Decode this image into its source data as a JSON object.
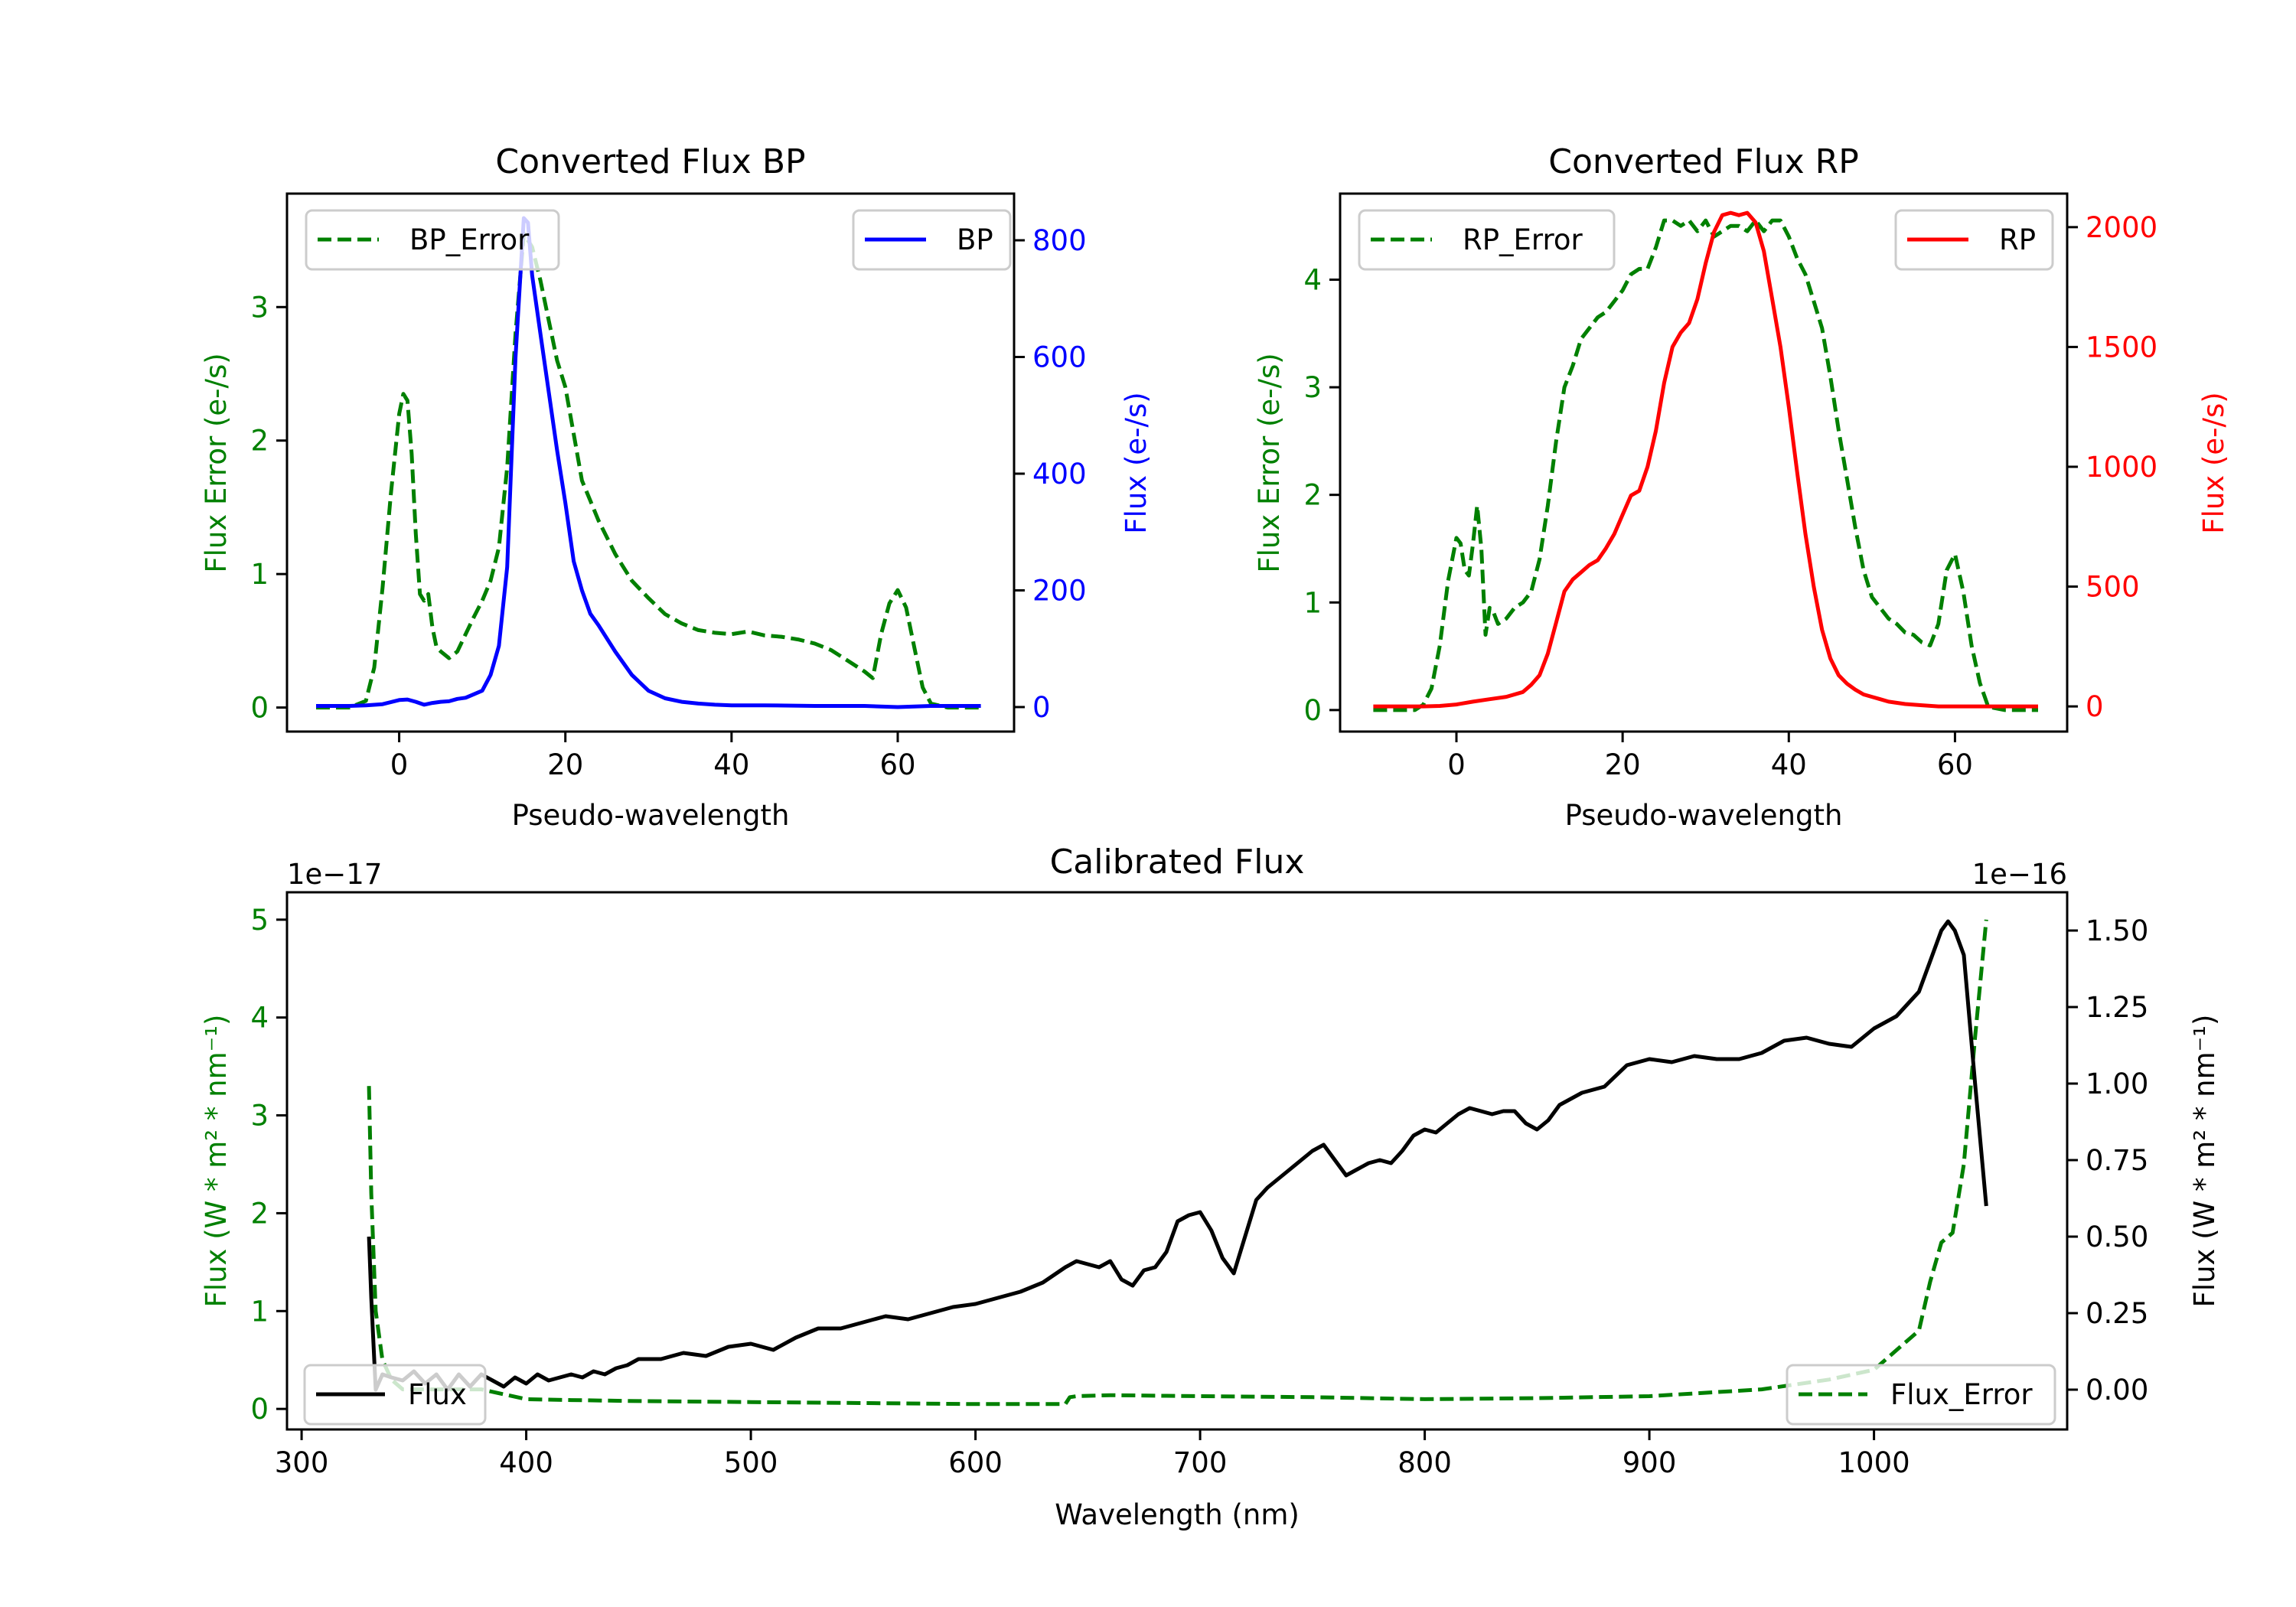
{
  "figure": {
    "background": "#ffffff"
  },
  "colors": {
    "error": "#008000",
    "bp": "#0000ff",
    "rp": "#ff0000",
    "flux": "#000000",
    "axis": "#000000"
  },
  "chart_data": [
    {
      "id": "bp",
      "type": "line",
      "title": "Converted Flux BP",
      "xlabel": "Pseudo-wavelength",
      "ylabel_left": "Flux Error (e-/s)",
      "ylabel_right": "Flux (e-/s)",
      "xlim": [
        -13.5,
        74
      ],
      "ylim_left": [
        -0.18,
        3.85
      ],
      "ylim_right": [
        -42,
        880
      ],
      "xticks": [
        0,
        20,
        40,
        60
      ],
      "xtick_labels": [
        "0",
        "20",
        "40",
        "60"
      ],
      "yticks_left": [
        0,
        1,
        2,
        3
      ],
      "ytick_labels_left": [
        "0",
        "1",
        "2",
        "3"
      ],
      "yticks_right": [
        0,
        200,
        400,
        600,
        800
      ],
      "ytick_labels_right": [
        "0",
        "200",
        "400",
        "600",
        "800"
      ],
      "grid": false,
      "legends": [
        {
          "label": "BP_Error",
          "placement": "upper-left",
          "series": "error"
        },
        {
          "label": "BP",
          "placement": "upper-right",
          "series": "flux"
        }
      ],
      "series": [
        {
          "name": "BP_Error",
          "axis": "left",
          "style": "dashed",
          "color_key": "error",
          "x": [
            -10,
            -6,
            -4,
            -3,
            -2,
            -1,
            0,
            0.5,
            1,
            1.5,
            2,
            2.5,
            3,
            3.5,
            4,
            4.5,
            5,
            6,
            7,
            8,
            9,
            10,
            11,
            12,
            13,
            14,
            15,
            16,
            17,
            18,
            19,
            20,
            21,
            22,
            23,
            24,
            26,
            28,
            30,
            32,
            34,
            36,
            38,
            40,
            42,
            44,
            46,
            48,
            50,
            52,
            54,
            56,
            57,
            58,
            59,
            60,
            61,
            62,
            63,
            64,
            66,
            70
          ],
          "y": [
            0,
            0,
            0.05,
            0.3,
            0.9,
            1.6,
            2.2,
            2.35,
            2.3,
            1.9,
            1.3,
            0.85,
            0.8,
            0.85,
            0.6,
            0.45,
            0.42,
            0.37,
            0.42,
            0.55,
            0.68,
            0.8,
            0.95,
            1.2,
            1.8,
            2.8,
            3.55,
            3.45,
            3.2,
            2.9,
            2.6,
            2.4,
            2.05,
            1.7,
            1.55,
            1.4,
            1.15,
            0.95,
            0.82,
            0.7,
            0.63,
            0.58,
            0.56,
            0.55,
            0.57,
            0.54,
            0.53,
            0.51,
            0.48,
            0.43,
            0.35,
            0.27,
            0.22,
            0.55,
            0.78,
            0.88,
            0.75,
            0.45,
            0.15,
            0.03,
            0,
            0
          ]
        },
        {
          "name": "BP",
          "axis": "right",
          "style": "solid",
          "color_key": "bp",
          "x": [
            -10,
            -6,
            -4,
            -2,
            0,
            1,
            2,
            3,
            4,
            5,
            6,
            7,
            8,
            9,
            10,
            11,
            12,
            13,
            14,
            15,
            15.5,
            16,
            17,
            18,
            19,
            20,
            21,
            22,
            23,
            24,
            26,
            28,
            30,
            32,
            34,
            36,
            38,
            40,
            44,
            50,
            56,
            60,
            64,
            70
          ],
          "y": [
            2,
            2,
            3,
            5,
            12,
            13,
            9,
            4,
            7,
            9,
            10,
            14,
            16,
            22,
            28,
            55,
            105,
            240,
            600,
            838,
            830,
            740,
            640,
            540,
            440,
            350,
            250,
            200,
            160,
            140,
            95,
            55,
            28,
            15,
            9,
            6,
            4,
            3,
            3,
            2,
            2,
            0,
            2,
            2
          ]
        }
      ]
    },
    {
      "id": "rp",
      "type": "line",
      "title": "Converted Flux RP",
      "xlabel": "Pseudo-wavelength",
      "ylabel_left": "Flux Error (e-/s)",
      "ylabel_right": "Flux (e-/s)",
      "xlim": [
        -14,
        73.5
      ],
      "ylim_left": [
        -0.2,
        4.8
      ],
      "ylim_right": [
        -105,
        2140
      ],
      "xticks": [
        0,
        20,
        40,
        60
      ],
      "xtick_labels": [
        "0",
        "20",
        "40",
        "60"
      ],
      "yticks_left": [
        0,
        1,
        2,
        3,
        4
      ],
      "ytick_labels_left": [
        "0",
        "1",
        "2",
        "3",
        "4"
      ],
      "yticks_right": [
        0,
        500,
        1000,
        1500,
        2000
      ],
      "ytick_labels_right": [
        "0",
        "500",
        "1000",
        "1500",
        "2000"
      ],
      "grid": false,
      "legends": [
        {
          "label": "RP_Error",
          "placement": "upper-left",
          "series": "error"
        },
        {
          "label": "RP",
          "placement": "upper-right",
          "series": "flux"
        }
      ],
      "series": [
        {
          "name": "RP_Error",
          "axis": "left",
          "style": "dashed",
          "color_key": "error",
          "x": [
            -10,
            -5,
            -4,
            -3,
            -2,
            -1,
            0,
            0.5,
            1,
            1.5,
            2,
            2.5,
            3,
            3.5,
            4,
            4.5,
            5,
            6,
            7,
            8,
            9,
            10,
            11,
            12,
            13,
            14,
            15,
            16,
            17,
            18,
            19,
            20,
            21,
            22,
            23,
            24,
            25,
            26,
            27,
            28,
            29,
            30,
            31,
            32,
            33,
            34,
            35,
            36,
            37,
            38,
            39,
            40,
            41,
            42,
            43,
            44,
            45,
            46,
            47,
            48,
            49,
            50,
            51,
            52,
            53,
            54,
            55,
            56,
            57,
            58,
            59,
            60,
            61,
            62,
            63,
            64,
            66,
            70
          ],
          "y": [
            0,
            0,
            0.05,
            0.2,
            0.6,
            1.2,
            1.6,
            1.55,
            1.3,
            1.25,
            1.55,
            1.9,
            1.5,
            0.7,
            0.95,
            0.9,
            0.8,
            0.85,
            0.95,
            1.0,
            1.1,
            1.4,
            1.9,
            2.5,
            3.0,
            3.2,
            3.45,
            3.55,
            3.65,
            3.7,
            3.8,
            3.9,
            4.05,
            4.1,
            4.1,
            4.3,
            4.55,
            4.55,
            4.5,
            4.55,
            4.45,
            4.55,
            4.4,
            4.45,
            4.5,
            4.5,
            4.45,
            4.55,
            4.45,
            4.55,
            4.55,
            4.4,
            4.2,
            4.05,
            3.8,
            3.55,
            3.1,
            2.6,
            2.15,
            1.7,
            1.3,
            1.05,
            0.95,
            0.85,
            0.8,
            0.72,
            0.7,
            0.63,
            0.6,
            0.8,
            1.3,
            1.45,
            1.1,
            0.6,
            0.25,
            0.03,
            0,
            0
          ]
        },
        {
          "name": "RP",
          "axis": "right",
          "style": "solid",
          "color_key": "rp",
          "x": [
            -10,
            -4,
            -2,
            0,
            2,
            4,
            6,
            8,
            9,
            10,
            11,
            12,
            13,
            14,
            15,
            16,
            17,
            18,
            19,
            20,
            21,
            22,
            23,
            24,
            25,
            26,
            27,
            28,
            29,
            30,
            31,
            32,
            33,
            34,
            35,
            36,
            37,
            38,
            39,
            40,
            41,
            42,
            43,
            44,
            45,
            46,
            47,
            48,
            49,
            50,
            51,
            52,
            54,
            56,
            58,
            60,
            62,
            64,
            70
          ],
          "y": [
            0,
            0,
            2,
            8,
            20,
            30,
            40,
            60,
            90,
            130,
            220,
            350,
            480,
            530,
            560,
            590,
            610,
            660,
            720,
            800,
            880,
            900,
            1000,
            1150,
            1350,
            1500,
            1560,
            1600,
            1700,
            1850,
            1980,
            2050,
            2060,
            2050,
            2060,
            2020,
            1900,
            1700,
            1500,
            1250,
            980,
            720,
            500,
            320,
            200,
            130,
            95,
            70,
            50,
            40,
            30,
            20,
            10,
            5,
            0,
            0,
            0,
            0,
            0
          ]
        }
      ]
    },
    {
      "id": "calibrated",
      "type": "line",
      "title": "Calibrated Flux",
      "xlabel": "Wavelength (nm)",
      "ylabel_left": "Flux (W * m$^2$ * nm$^{-1}$)",
      "ylabel_left_display": "Flux (W * m² * nm⁻¹)",
      "ylabel_right_display": "Flux (W * m² * nm⁻¹)",
      "offset_left": "1e−17",
      "offset_right": "1e−16",
      "xlim": [
        293.5,
        1086
      ],
      "ylim_left": [
        -0.21,
        5.28
      ],
      "ylim_right": [
        -0.13,
        1.625
      ],
      "xticks": [
        300,
        400,
        500,
        600,
        700,
        800,
        900,
        1000
      ],
      "xtick_labels": [
        "300",
        "400",
        "500",
        "600",
        "700",
        "800",
        "900",
        "1000"
      ],
      "yticks_left": [
        0,
        1,
        2,
        3,
        4,
        5
      ],
      "ytick_labels_left": [
        "0",
        "1",
        "2",
        "3",
        "4",
        "5"
      ],
      "yticks_right": [
        0,
        0.25,
        0.5,
        0.75,
        1.0,
        1.25,
        1.5
      ],
      "ytick_labels_right": [
        "0.00",
        "0.25",
        "0.50",
        "0.75",
        "1.00",
        "1.25",
        "1.50"
      ],
      "grid": false,
      "legends": [
        {
          "label": "Flux",
          "placement": "lower-left",
          "series": "flux"
        },
        {
          "label": "Flux_Error",
          "placement": "lower-right",
          "series": "error"
        }
      ],
      "series": [
        {
          "name": "Flux_Error",
          "axis": "left",
          "unit_scale": "1e-17",
          "style": "dashed",
          "color_key": "error",
          "x": [
            330,
            331,
            333,
            336,
            340,
            345,
            360,
            380,
            390,
            400,
            420,
            450,
            500,
            550,
            600,
            640,
            642,
            645,
            660,
            700,
            750,
            800,
            850,
            900,
            950,
            980,
            1000,
            1010,
            1015,
            1020,
            1025,
            1030,
            1035,
            1040,
            1045,
            1050
          ],
          "y": [
            3.3,
            2.2,
            1.0,
            0.5,
            0.3,
            0.2,
            0.2,
            0.2,
            0.15,
            0.1,
            0.09,
            0.08,
            0.07,
            0.06,
            0.05,
            0.05,
            0.12,
            0.13,
            0.14,
            0.13,
            0.12,
            0.1,
            0.11,
            0.13,
            0.2,
            0.3,
            0.4,
            0.6,
            0.7,
            0.8,
            1.3,
            1.7,
            1.8,
            2.5,
            3.8,
            5.0
          ]
        },
        {
          "name": "Flux",
          "axis": "right",
          "unit_scale": "1e-16",
          "style": "solid",
          "color_key": "flux",
          "x": [
            330,
            331,
            333,
            336,
            340,
            345,
            350,
            355,
            360,
            365,
            370,
            375,
            380,
            385,
            390,
            395,
            400,
            405,
            410,
            415,
            420,
            425,
            430,
            435,
            440,
            445,
            450,
            460,
            470,
            480,
            490,
            500,
            510,
            520,
            530,
            540,
            550,
            560,
            570,
            580,
            590,
            600,
            610,
            620,
            630,
            640,
            645,
            650,
            655,
            660,
            665,
            670,
            675,
            680,
            685,
            690,
            695,
            700,
            705,
            710,
            715,
            720,
            725,
            730,
            740,
            750,
            755,
            760,
            765,
            770,
            775,
            780,
            785,
            790,
            795,
            800,
            805,
            810,
            815,
            820,
            825,
            830,
            835,
            840,
            845,
            850,
            855,
            860,
            870,
            880,
            890,
            900,
            910,
            920,
            930,
            940,
            950,
            960,
            970,
            980,
            990,
            1000,
            1010,
            1020,
            1025,
            1030,
            1033,
            1036,
            1040,
            1045,
            1050
          ],
          "y": [
            0.5,
            0.3,
            0.0,
            0.05,
            0.04,
            0.03,
            0.06,
            0.02,
            0.05,
            0.0,
            0.05,
            0.01,
            0.05,
            0.03,
            0.01,
            0.04,
            0.02,
            0.05,
            0.03,
            0.04,
            0.05,
            0.04,
            0.06,
            0.05,
            0.07,
            0.08,
            0.1,
            0.1,
            0.12,
            0.11,
            0.14,
            0.15,
            0.13,
            0.17,
            0.2,
            0.2,
            0.22,
            0.24,
            0.23,
            0.25,
            0.27,
            0.28,
            0.3,
            0.32,
            0.35,
            0.4,
            0.42,
            0.41,
            0.4,
            0.42,
            0.36,
            0.34,
            0.39,
            0.4,
            0.45,
            0.55,
            0.57,
            0.58,
            0.52,
            0.43,
            0.38,
            0.5,
            0.62,
            0.66,
            0.72,
            0.78,
            0.8,
            0.75,
            0.7,
            0.72,
            0.74,
            0.75,
            0.74,
            0.78,
            0.83,
            0.85,
            0.84,
            0.87,
            0.9,
            0.92,
            0.91,
            0.9,
            0.91,
            0.91,
            0.87,
            0.85,
            0.88,
            0.93,
            0.97,
            0.99,
            1.06,
            1.08,
            1.07,
            1.09,
            1.08,
            1.08,
            1.1,
            1.14,
            1.15,
            1.13,
            1.12,
            1.18,
            1.22,
            1.3,
            1.4,
            1.5,
            1.53,
            1.5,
            1.42,
            1.0,
            0.6
          ]
        }
      ]
    }
  ]
}
